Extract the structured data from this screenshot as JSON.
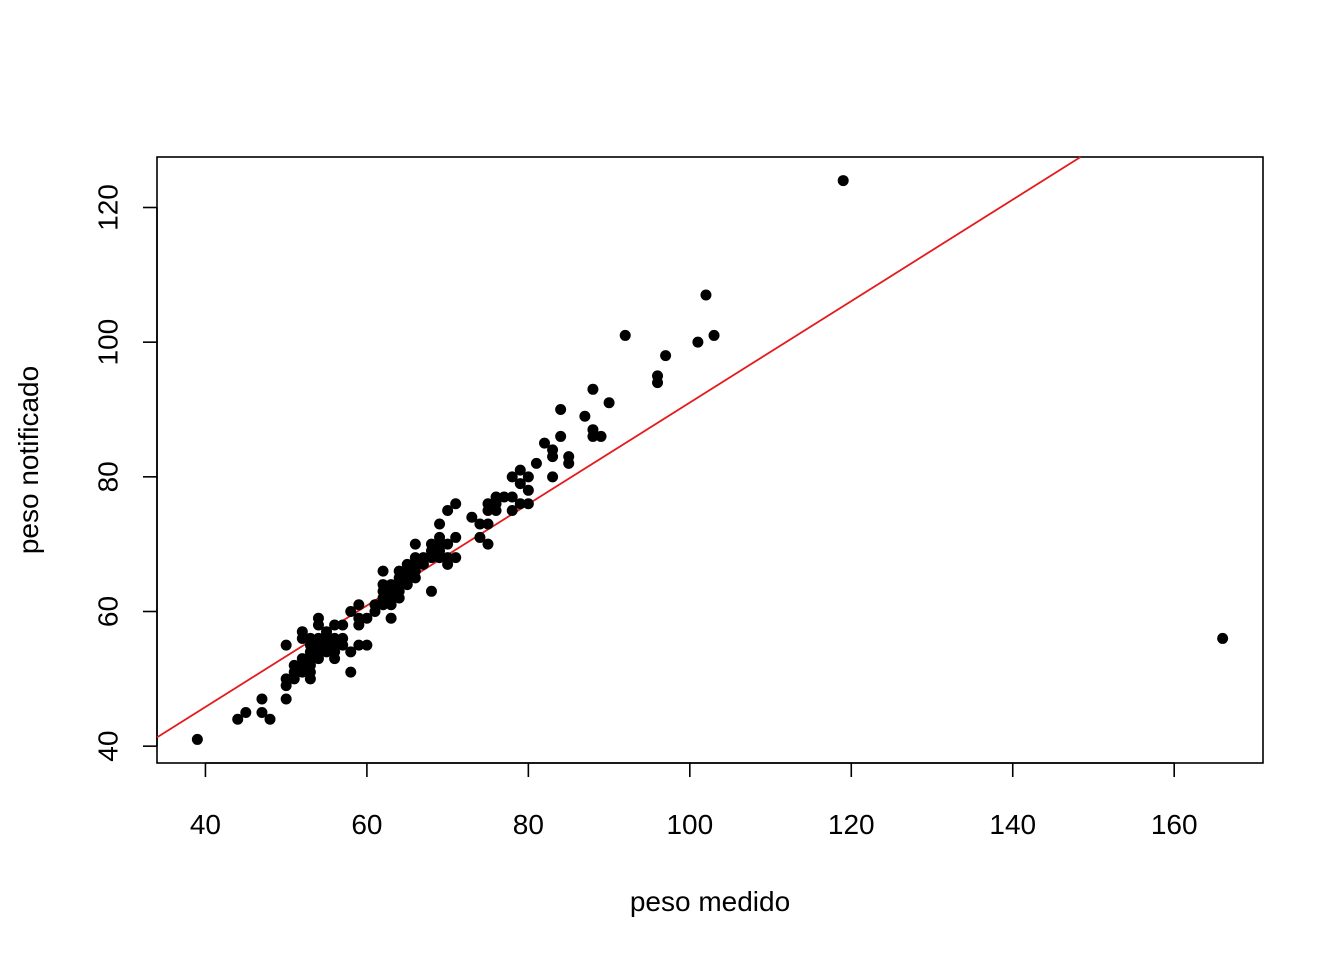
{
  "chart_data": {
    "type": "scatter",
    "title": "",
    "xlabel": "peso medido",
    "ylabel": "peso notificado",
    "xlim": [
      34,
      171
    ],
    "ylim": [
      37.5,
      127.5
    ],
    "x_ticks": [
      40,
      60,
      80,
      100,
      120,
      140,
      160
    ],
    "y_ticks": [
      40,
      60,
      80,
      100,
      120
    ],
    "grid": false,
    "legend": "none",
    "point_color": "#000000",
    "fit_line_color": "#e41a1c",
    "fit_line": {
      "points": [
        [
          34,
          41.3
        ],
        [
          148.4,
          127.5
        ]
      ]
    },
    "points": [
      [
        39,
        41
      ],
      [
        44,
        44
      ],
      [
        45,
        45
      ],
      [
        47,
        45
      ],
      [
        47,
        47
      ],
      [
        48,
        44
      ],
      [
        50,
        47
      ],
      [
        50,
        49
      ],
      [
        50,
        50
      ],
      [
        50,
        55
      ],
      [
        51,
        50
      ],
      [
        51,
        51
      ],
      [
        51,
        52
      ],
      [
        52,
        51
      ],
      [
        52,
        52
      ],
      [
        52,
        53
      ],
      [
        52,
        56
      ],
      [
        52,
        57
      ],
      [
        53,
        50
      ],
      [
        53,
        51
      ],
      [
        53,
        52
      ],
      [
        53,
        53
      ],
      [
        53,
        54
      ],
      [
        53,
        55
      ],
      [
        53,
        56
      ],
      [
        54,
        53
      ],
      [
        54,
        54
      ],
      [
        54,
        55
      ],
      [
        54,
        56
      ],
      [
        54,
        58
      ],
      [
        54,
        59
      ],
      [
        55,
        54
      ],
      [
        55,
        55
      ],
      [
        55,
        56
      ],
      [
        55,
        57
      ],
      [
        56,
        53
      ],
      [
        56,
        54
      ],
      [
        56,
        55
      ],
      [
        56,
        56
      ],
      [
        56,
        58
      ],
      [
        57,
        55
      ],
      [
        57,
        56
      ],
      [
        57,
        58
      ],
      [
        58,
        51
      ],
      [
        58,
        54
      ],
      [
        58,
        60
      ],
      [
        59,
        55
      ],
      [
        59,
        58
      ],
      [
        59,
        59
      ],
      [
        59,
        61
      ],
      [
        60,
        55
      ],
      [
        60,
        59
      ],
      [
        61,
        60
      ],
      [
        61,
        61
      ],
      [
        62,
        61
      ],
      [
        62,
        62
      ],
      [
        62,
        63
      ],
      [
        62,
        64
      ],
      [
        62,
        66
      ],
      [
        63,
        59
      ],
      [
        63,
        61
      ],
      [
        63,
        62
      ],
      [
        63,
        63
      ],
      [
        63,
        64
      ],
      [
        64,
        62
      ],
      [
        64,
        63
      ],
      [
        64,
        64
      ],
      [
        64,
        65
      ],
      [
        64,
        66
      ],
      [
        65,
        64
      ],
      [
        65,
        65
      ],
      [
        65,
        66
      ],
      [
        65,
        67
      ],
      [
        66,
        65
      ],
      [
        66,
        66
      ],
      [
        66,
        67
      ],
      [
        66,
        68
      ],
      [
        66,
        70
      ],
      [
        67,
        67
      ],
      [
        67,
        68
      ],
      [
        68,
        63
      ],
      [
        68,
        68
      ],
      [
        68,
        69
      ],
      [
        68,
        70
      ],
      [
        69,
        68
      ],
      [
        69,
        69
      ],
      [
        69,
        70
      ],
      [
        69,
        71
      ],
      [
        69,
        73
      ],
      [
        70,
        67
      ],
      [
        70,
        68
      ],
      [
        70,
        70
      ],
      [
        70,
        75
      ],
      [
        71,
        68
      ],
      [
        71,
        71
      ],
      [
        71,
        76
      ],
      [
        73,
        74
      ],
      [
        74,
        71
      ],
      [
        74,
        73
      ],
      [
        75,
        70
      ],
      [
        75,
        73
      ],
      [
        75,
        75
      ],
      [
        75,
        76
      ],
      [
        76,
        75
      ],
      [
        76,
        76
      ],
      [
        76,
        77
      ],
      [
        77,
        77
      ],
      [
        78,
        75
      ],
      [
        78,
        77
      ],
      [
        78,
        80
      ],
      [
        79,
        76
      ],
      [
        79,
        79
      ],
      [
        79,
        81
      ],
      [
        80,
        76
      ],
      [
        80,
        78
      ],
      [
        80,
        80
      ],
      [
        81,
        82
      ],
      [
        82,
        85
      ],
      [
        83,
        80
      ],
      [
        83,
        83
      ],
      [
        83,
        84
      ],
      [
        84,
        86
      ],
      [
        84,
        90
      ],
      [
        85,
        82
      ],
      [
        85,
        83
      ],
      [
        87,
        89
      ],
      [
        88,
        86
      ],
      [
        88,
        87
      ],
      [
        88,
        93
      ],
      [
        89,
        86
      ],
      [
        90,
        91
      ],
      [
        92,
        101
      ],
      [
        96,
        94
      ],
      [
        96,
        95
      ],
      [
        97,
        98
      ],
      [
        101,
        100
      ],
      [
        102,
        107
      ],
      [
        103,
        101
      ],
      [
        119,
        124
      ],
      [
        166,
        56
      ]
    ]
  }
}
